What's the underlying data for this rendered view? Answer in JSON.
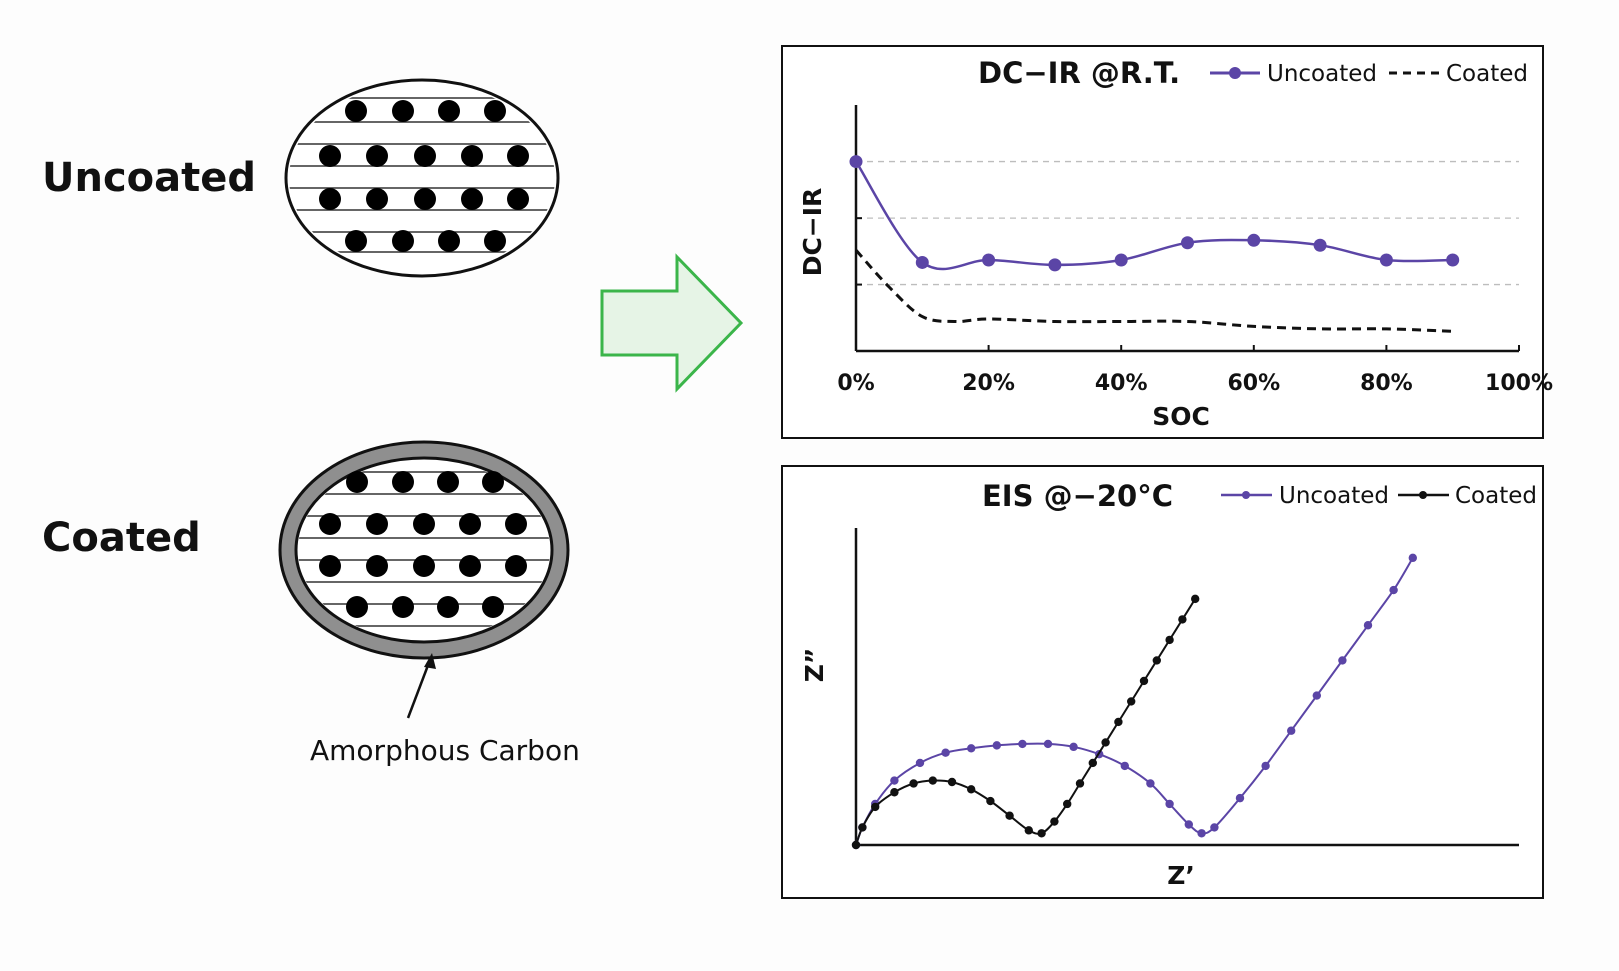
{
  "particles": {
    "uncoated_label": "Uncoated",
    "coated_label": "Coated",
    "coating_annotation": "Amorphous Carbon",
    "colors": {
      "coating": "#8f8f8f",
      "dots": "#000000"
    }
  },
  "arrow": {
    "color": "#3bb54a",
    "fill": "#e6f4e6"
  },
  "chart_data": [
    {
      "type": "line",
      "title": "DC−IR @R.T.",
      "xlabel": "SOC",
      "ylabel": "DC−IR",
      "x_ticks": [
        "0%",
        "20%",
        "40%",
        "60%",
        "80%",
        "100%"
      ],
      "xlim": [
        0,
        100
      ],
      "ylim": [
        0,
        100
      ],
      "grid": true,
      "legend_position": "top-right",
      "series": [
        {
          "name": "Uncoated",
          "color": "#5b45a6",
          "style": "solid-markers",
          "x": [
            0,
            10,
            20,
            30,
            40,
            50,
            60,
            70,
            80,
            90
          ],
          "y": [
            77,
            36,
            37,
            35,
            37,
            44,
            45,
            43,
            37,
            37
          ]
        },
        {
          "name": "Coated",
          "color": "#111111",
          "style": "dashed",
          "x": [
            0,
            5,
            10,
            15,
            20,
            30,
            40,
            50,
            60,
            70,
            80,
            90
          ],
          "y": [
            41,
            26,
            14,
            12,
            13,
            12,
            12,
            12,
            10,
            9,
            9,
            8
          ]
        }
      ]
    },
    {
      "type": "scatter",
      "title": "EIS @−20°C",
      "xlabel": "Z’",
      "ylabel": "Z”",
      "xlim": [
        0,
        100
      ],
      "ylim": [
        0,
        100
      ],
      "grid": false,
      "legend_position": "top-right",
      "series": [
        {
          "name": "Uncoated",
          "color": "#5b45a6",
          "style": "line-markers",
          "x": [
            0,
            1,
            3,
            6,
            10,
            14,
            18,
            22,
            26,
            30,
            34,
            38,
            42,
            46,
            49,
            52,
            54,
            56,
            60,
            64,
            68,
            72,
            76,
            80,
            84,
            87
          ],
          "y": [
            0,
            6,
            14,
            22,
            28,
            31.5,
            33,
            34,
            34.5,
            34.5,
            33.5,
            31,
            27,
            21,
            14,
            7,
            4,
            6,
            16,
            27,
            39,
            51,
            63,
            75,
            87,
            98
          ]
        },
        {
          "name": "Coated",
          "color": "#111111",
          "style": "line-markers",
          "x": [
            0,
            1,
            3,
            6,
            9,
            12,
            15,
            18,
            21,
            24,
            27,
            29,
            31,
            33,
            35,
            37,
            39,
            41,
            43,
            45,
            47,
            49,
            51,
            53
          ],
          "y": [
            0,
            6,
            13,
            18,
            21,
            22,
            21.5,
            19,
            15,
            10,
            5,
            4,
            8,
            14,
            21,
            28,
            35,
            42,
            49,
            56,
            63,
            70,
            77,
            84
          ]
        }
      ]
    }
  ]
}
